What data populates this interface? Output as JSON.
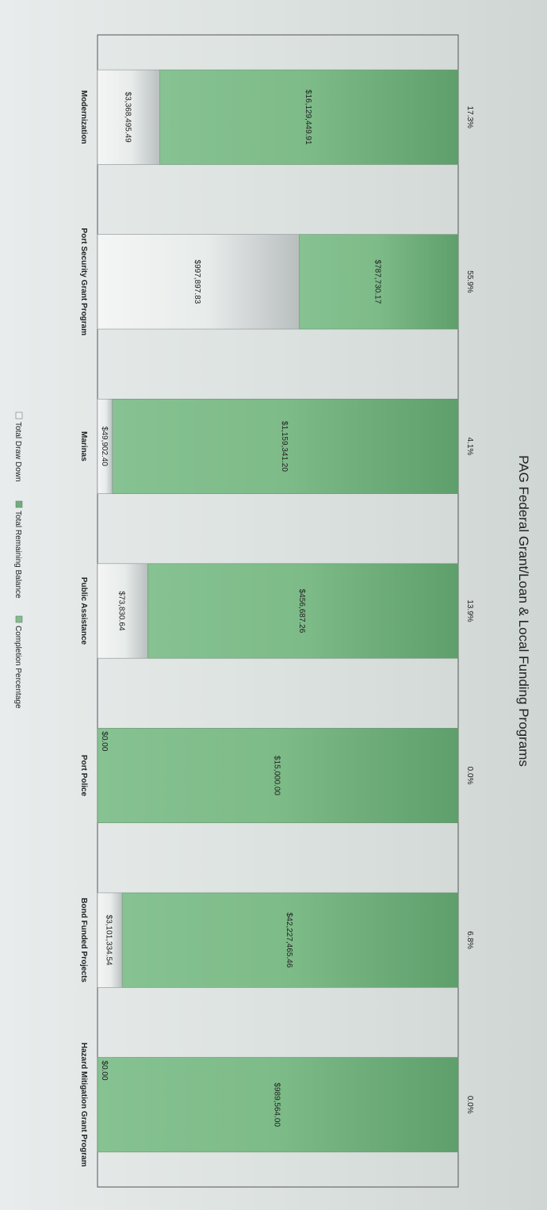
{
  "chart_data": {
    "type": "bar",
    "stacked": true,
    "title": "PAG Federal Grant/Loan & Local Funding Programs",
    "categories": [
      "Modernization",
      "Port Security Grant Program",
      "Marinas",
      "Public Assistance",
      "Port Police",
      "Bond Funded Projects",
      "Hazard Mitigation Grant Program"
    ],
    "series": [
      {
        "name": "Total Draw Down",
        "color": "#e4e8e8",
        "values": [
          3368495.49,
          997897.83,
          49902.4,
          73830.64,
          0,
          3101334.54,
          0
        ],
        "labels": [
          "$3,368,495.49",
          "$997,897.83",
          "$49,902.40",
          "$73,830.64",
          "$0.00",
          "$3,101,334.54",
          "$0.00"
        ]
      },
      {
        "name": "Total Remaining Balance",
        "color": "#79b985",
        "values": [
          16129449.91,
          787730.17,
          1159341.2,
          456687.26,
          15000.0,
          42227465.46,
          989564.0
        ],
        "labels": [
          "$16,129,449.91",
          "$787,730.17",
          "$1,159,341.20",
          "$456,687.26",
          "$15,000.00",
          "$42,227,465.46",
          "$989,564.00"
        ]
      },
      {
        "name": "Completion Percentage",
        "color": "#7fbf8b",
        "values": [
          17.3,
          55.9,
          4.1,
          13.9,
          0.0,
          6.8,
          0.0
        ],
        "labels": [
          "17.3%",
          "55.9%",
          "4.1%",
          "13.9%",
          "0.0%",
          "6.8%",
          "0.0%"
        ]
      }
    ],
    "legend_position": "bottom",
    "normalized": true,
    "grid": false
  }
}
